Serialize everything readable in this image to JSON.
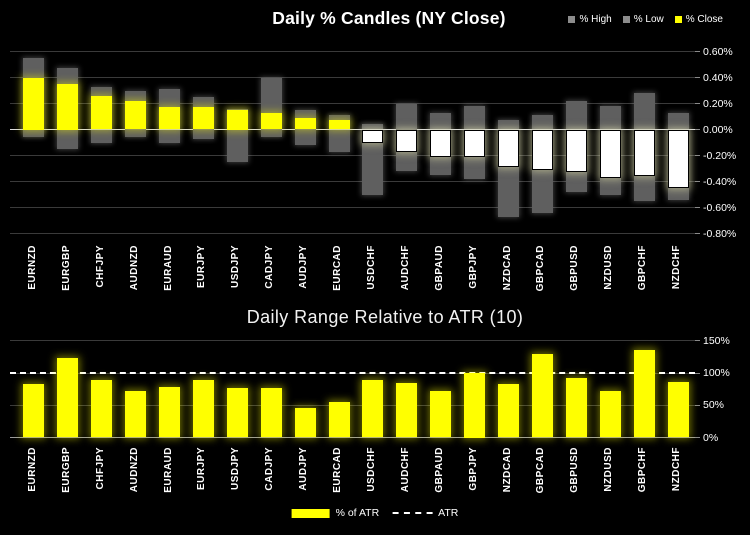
{
  "page": {
    "background": "#000000"
  },
  "charts": {
    "top": {
      "title": "Daily % Candles (NY Close)",
      "legend": [
        {
          "label": "% High",
          "swatch": "#8c8c8c"
        },
        {
          "label": "% Low",
          "swatch": "#8c8c8c"
        },
        {
          "label": "% Close",
          "swatch": "#ffff00"
        }
      ],
      "y_tick_labels": [
        "0.60%",
        "0.40%",
        "0.20%",
        "0.00%",
        "-0.20%",
        "-0.40%",
        "-0.60%",
        "-0.80%"
      ]
    },
    "bottom": {
      "title": "Daily Range Relative to ATR (10)",
      "legend": [
        {
          "label": "% of ATR",
          "swatch": "#ffff00",
          "kind": "bar"
        },
        {
          "label": "ATR",
          "kind": "dashed-line"
        }
      ],
      "y_tick_labels": [
        "150%",
        "100%",
        "50%",
        "0%"
      ]
    }
  },
  "chart_data": [
    {
      "type": "bar",
      "subtype": "percent-high-low-close-candles",
      "title": "Daily % Candles (NY Close)",
      "categories": [
        "EURNZD",
        "EURGBP",
        "CHFJPY",
        "AUDNZD",
        "EURAUD",
        "EURJPY",
        "USDJPY",
        "CADJPY",
        "AUDJPY",
        "EURCAD",
        "USDCHF",
        "AUDCHF",
        "GBPAUD",
        "GBPJPY",
        "NZDCAD",
        "GBPCAD",
        "GBPUSD",
        "NZDUSD",
        "GBPCHF",
        "NZDCHF"
      ],
      "series": [
        {
          "name": "% High",
          "color": "#5f5f5f",
          "values": [
            0.55,
            0.47,
            0.33,
            0.3,
            0.31,
            0.25,
            0.16,
            0.4,
            0.15,
            0.11,
            0.04,
            0.2,
            0.13,
            0.18,
            0.07,
            0.11,
            0.22,
            0.18,
            0.28,
            0.13
          ]
        },
        {
          "name": "% Low",
          "color": "#5f5f5f",
          "values": [
            -0.06,
            -0.15,
            -0.1,
            -0.06,
            -0.1,
            -0.07,
            -0.25,
            -0.06,
            -0.12,
            -0.17,
            -0.5,
            -0.32,
            -0.35,
            -0.38,
            -0.67,
            -0.64,
            -0.48,
            -0.5,
            -0.55,
            -0.54
          ]
        },
        {
          "name": "% Close",
          "color_positive": "#ffff00",
          "color_negative": "#ffffff",
          "values": [
            0.4,
            0.35,
            0.26,
            0.22,
            0.17,
            0.17,
            0.15,
            0.13,
            0.09,
            0.07,
            -0.1,
            -0.17,
            -0.21,
            -0.21,
            -0.29,
            -0.31,
            -0.33,
            -0.37,
            -0.36,
            -0.45
          ]
        }
      ],
      "ylim": [
        -0.8,
        0.6
      ],
      "ytick_step": 0.2,
      "yformat": "0.00%",
      "grid": true,
      "axis_side": "right",
      "legend_position": "top-right"
    },
    {
      "type": "bar",
      "title": "Daily Range Relative to ATR (10)",
      "categories": [
        "EURNZD",
        "EURGBP",
        "CHFJPY",
        "AUDNZD",
        "EURAUD",
        "EURJPY",
        "USDJPY",
        "CADJPY",
        "AUDJPY",
        "EURCAD",
        "USDCHF",
        "AUDCHF",
        "GBPAUD",
        "GBPJPY",
        "NZDCAD",
        "GBPCAD",
        "GBPUSD",
        "NZDUSD",
        "GBPCHF",
        "NZDCHF"
      ],
      "series": [
        {
          "name": "% of ATR",
          "color": "#ffff00",
          "values": [
            83,
            123,
            89,
            72,
            79,
            89,
            76,
            76,
            45,
            55,
            89,
            85,
            72,
            100,
            83,
            129,
            92,
            72,
            135,
            86
          ]
        }
      ],
      "reference_line": {
        "name": "ATR",
        "value": 100,
        "style": "dashed",
        "color": "#ffffff"
      },
      "ylim": [
        0,
        150
      ],
      "ytick_step": 50,
      "yformat": "0%",
      "grid": true,
      "axis_side": "right",
      "legend_position": "bottom-center"
    }
  ]
}
